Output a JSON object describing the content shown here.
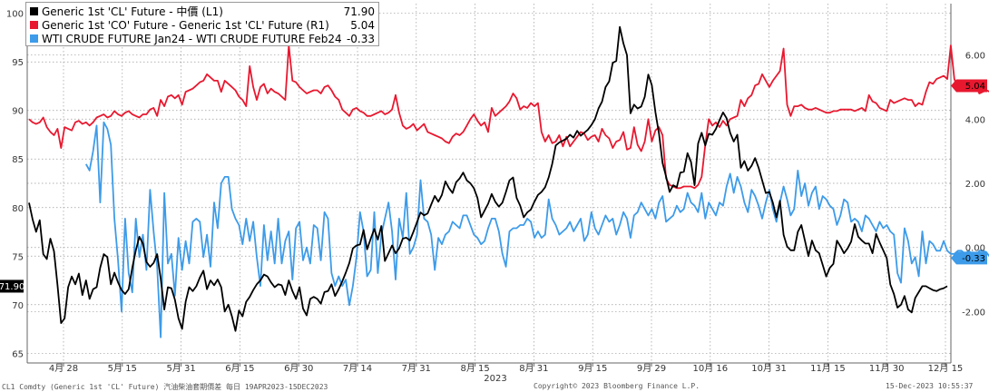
{
  "chart_data": {
    "type": "line",
    "xlabel": "2023",
    "x_ticks": [
      "4月 28",
      "5月 15",
      "5月 31",
      "6月 15",
      "6月 30",
      "7月 14",
      "7月 31",
      "8月 15",
      "8月 31",
      "9月 15",
      "9月 29",
      "10月 16",
      "10月 31",
      "11月 15",
      "11月 30",
      "12月 15"
    ],
    "left_axis": {
      "ylim": [
        64,
        101
      ],
      "ticks": [
        65,
        70,
        75,
        80,
        85,
        90,
        95,
        100
      ]
    },
    "right_axis": {
      "ylim": [
        -3.6,
        7.6
      ],
      "ticks": [
        "-2.00",
        "0.00",
        "2.00",
        "4.00",
        "6.00"
      ],
      "tick_values": [
        -2,
        0,
        2,
        4,
        6
      ]
    },
    "grid": true,
    "legend_position": "top-left",
    "series": [
      {
        "name": "Generic 1st 'CL' Future - 中價 (L1)",
        "last_label": "71.90",
        "axis": "left",
        "color": "#000000",
        "values": [
          80.5,
          78.8,
          77.5,
          78.7,
          75.2,
          74.7,
          76.8,
          75.5,
          72.0,
          68.1,
          68.6,
          71.8,
          72.9,
          72.1,
          73.2,
          71.0,
          72.5,
          70.6,
          71.6,
          71.8,
          73.8,
          75.2,
          74.9,
          72.1,
          73.3,
          72.3,
          71.5,
          71.1,
          71.6,
          73.8,
          75.6,
          77.0,
          76.3,
          74.4,
          73.9,
          74.3,
          75.2,
          72.7,
          69.5,
          71.8,
          71.7,
          70.5,
          68.6,
          67.5,
          70.3,
          71.8,
          71.4,
          71.9,
          72.8,
          73.5,
          71.6,
          72.5,
          72.0,
          72.6,
          71.8,
          69.3,
          70.0,
          68.8,
          67.3,
          69.4,
          68.8,
          70.3,
          70.8,
          71.5,
          72.1,
          72.5,
          73.1,
          72.9,
          72.3,
          71.8,
          72.1,
          72.0,
          71.0,
          72.5,
          71.4,
          70.6,
          71.8,
          69.6,
          68.9,
          70.6,
          70.8,
          70.6,
          70.1,
          71.3,
          71.4,
          72.1,
          70.9,
          71.6,
          72.4,
          73.3,
          74.3,
          75.8,
          76.1,
          76.2,
          77.7,
          75.7,
          76.8,
          77.8,
          76.7,
          78.1,
          74.5,
          75.3,
          76.1,
          75.3,
          75.8,
          76.8,
          76.9,
          76.6,
          77.5,
          78.5,
          79.5,
          79.2,
          79.4,
          80.3,
          81.2,
          80.6,
          81.3,
          82.7,
          82.0,
          81.5,
          82.6,
          83.0,
          83.6,
          82.8,
          82.5,
          82.0,
          81.0,
          79.0,
          79.7,
          80.4,
          81.4,
          80.6,
          80.1,
          80.5,
          81.6,
          82.8,
          83.1,
          81.0,
          80.2,
          79.0,
          79.5,
          79.8,
          80.6,
          81.3,
          81.6,
          82.1,
          83.1,
          84.5,
          86.4,
          86.7,
          86.9,
          87.1,
          87.5,
          87.2,
          87.9,
          87.4,
          87.7,
          88.0,
          88.5,
          89.1,
          90.2,
          90.9,
          92.4,
          93.0,
          94.9,
          95.1,
          98.6,
          96.9,
          95.7,
          89.7,
          90.6,
          90.2,
          90.4,
          91.4,
          93.7,
          92.6,
          89.8,
          87.6,
          84.6,
          83.2,
          81.6,
          82.3,
          82.1,
          83.6,
          83.7,
          85.6,
          84.7,
          82.3,
          86.6,
          87.7,
          86.4,
          87.6,
          87.5,
          88.1,
          89.0,
          89.8,
          89.2,
          87.7,
          86.8,
          87.5,
          84.1,
          84.8,
          83.8,
          84.3,
          85.1,
          84.1,
          82.8,
          81.5,
          81.6,
          80.5,
          79.0,
          80.7,
          77.2,
          76.0,
          75.6,
          75.6,
          77.5,
          78.2,
          76.6,
          75.0,
          76.6,
          75.6,
          75.3,
          74.1,
          72.9,
          73.8,
          74.2,
          76.6,
          76.0,
          75.3,
          75.8,
          76.5,
          78.3,
          77.0,
          76.6,
          76.3,
          76.3,
          75.3,
          77.3,
          76.4,
          75.6,
          74.8,
          72.1,
          71.1,
          69.7,
          70.0,
          70.9,
          69.5,
          69.2,
          70.7,
          71.3,
          71.9,
          71.9,
          71.7,
          71.5,
          71.4,
          71.6,
          71.7,
          71.9
        ]
      },
      {
        "name": "Generic 1st 'CO' Future - Generic 1st 'CL' Future (R1)",
        "last_label": "5.04",
        "axis": "right",
        "color": "#e8182f",
        "values": [
          4.0,
          3.9,
          3.85,
          3.9,
          4.05,
          3.75,
          3.6,
          3.5,
          3.7,
          3.1,
          3.75,
          3.7,
          3.65,
          3.9,
          3.95,
          3.85,
          3.9,
          3.8,
          3.9,
          4.05,
          4.1,
          4.15,
          4.05,
          4.1,
          4.25,
          4.15,
          4.1,
          4.2,
          4.25,
          4.15,
          4.1,
          4.05,
          4.15,
          4.15,
          4.3,
          4.35,
          4.1,
          4.6,
          4.4,
          4.7,
          4.75,
          4.65,
          4.75,
          4.45,
          4.85,
          4.9,
          4.95,
          5.05,
          5.15,
          5.2,
          5.4,
          5.3,
          5.2,
          5.2,
          4.85,
          5.2,
          5.1,
          5.0,
          4.9,
          4.7,
          4.6,
          4.4,
          5.65,
          5.0,
          4.6,
          5.0,
          5.1,
          4.8,
          4.95,
          4.85,
          4.8,
          4.7,
          4.6,
          6.3,
          5.2,
          5.15,
          5.0,
          4.9,
          4.8,
          4.85,
          4.9,
          4.9,
          4.8,
          5.0,
          5.05,
          4.9,
          4.7,
          4.6,
          4.3,
          4.2,
          4.1,
          4.3,
          4.35,
          4.25,
          4.2,
          4.1,
          4.1,
          4.15,
          4.2,
          4.25,
          4.15,
          4.2,
          4.3,
          4.75,
          4.2,
          3.8,
          3.7,
          3.75,
          3.85,
          3.65,
          3.75,
          3.85,
          3.6,
          3.55,
          3.5,
          3.45,
          3.4,
          3.3,
          3.25,
          3.45,
          3.55,
          3.5,
          3.6,
          3.8,
          4.0,
          4.15,
          3.95,
          3.8,
          3.9,
          3.6,
          4.35,
          4.1,
          4.2,
          4.3,
          4.4,
          4.55,
          4.8,
          4.65,
          4.3,
          4.4,
          4.35,
          4.5,
          4.4,
          4.5,
          3.6,
          3.3,
          3.5,
          3.25,
          3.3,
          3.5,
          3.15,
          3.45,
          3.15,
          3.3,
          3.45,
          3.6,
          3.55,
          3.35,
          3.45,
          3.5,
          3.3,
          3.7,
          3.5,
          3.4,
          3.1,
          3.3,
          3.35,
          3.6,
          3.05,
          3.1,
          3.75,
          3.2,
          3.0,
          3.3,
          4.0,
          3.3,
          3.65,
          3.75,
          3.5,
          2.15,
          1.95,
          1.9,
          1.85,
          1.85,
          1.9,
          1.9,
          1.9,
          1.85,
          1.95,
          2.2,
          3.2,
          4.0,
          3.8,
          3.9,
          3.75,
          3.95,
          3.8,
          4.0,
          4.05,
          4.1,
          4.6,
          4.4,
          4.65,
          4.75,
          5.05,
          5.1,
          5.4,
          5.2,
          5.0,
          5.2,
          5.35,
          5.5,
          6.2,
          4.45,
          4.1,
          4.4,
          4.4,
          4.45,
          4.35,
          4.3,
          4.3,
          4.35,
          4.3,
          4.25,
          4.2,
          4.2,
          4.25,
          4.25,
          4.3,
          4.3,
          4.3,
          4.3,
          4.25,
          4.3,
          4.35,
          4.25,
          4.75,
          4.55,
          4.5,
          4.35,
          4.3,
          4.25,
          4.6,
          4.5,
          4.55,
          4.6,
          4.65,
          4.6,
          4.6,
          4.4,
          4.5,
          4.45,
          4.85,
          5.15,
          5.1,
          5.25,
          5.3,
          5.35,
          5.25,
          6.3,
          5.25,
          4.95,
          5.1,
          5.0,
          5.05,
          5.0,
          5.05,
          4.8,
          4.85,
          4.9,
          4.85,
          5.0,
          4.95,
          5.04
        ]
      },
      {
        "name": "WTI CRUDE FUTURE Jan24 - WTI CRUDE FUTURE Feb24 (R1)",
        "last_label": "-0.33",
        "axis": "right",
        "color": "#3d9be9",
        "start_index": 16,
        "values": [
          2.6,
          2.4,
          3.0,
          3.8,
          1.4,
          3.9,
          3.7,
          3.2,
          0.9,
          -0.4,
          -2.0,
          0.9,
          -0.8,
          -1.4,
          0.9,
          -0.3,
          0.4,
          -0.7,
          1.8,
          0.5,
          -0.6,
          -2.8,
          1.7,
          -0.5,
          -0.2,
          -1.5,
          0.3,
          -0.7,
          0.2,
          -0.5,
          0.8,
          0.9,
          0.8,
          -0.3,
          0.4,
          -0.6,
          1.4,
          0.6,
          2.0,
          2.2,
          2.2,
          1.2,
          0.9,
          0.7,
          0.1,
          0.9,
          0.2,
          0.8,
          -0.3,
          -1.2,
          0.7,
          -0.4,
          0.5,
          -0.5,
          0.9,
          -0.5,
          0.2,
          0.5,
          -1.0,
          0.6,
          0.8,
          -0.4,
          0.0,
          -0.5,
          0.7,
          0.6,
          -0.4,
          1.1,
          0.9,
          -0.8,
          -1.2,
          -0.9,
          -1.2,
          -1.0,
          -1.8,
          -1.2,
          -0.3,
          1.1,
          0.5,
          -0.9,
          -0.7,
          1.1,
          -0.8,
          0.4,
          0.9,
          1.4,
          0.5,
          -1.0,
          0.9,
          0.3,
          1.7,
          -0.2,
          0.0,
          0.4,
          2.1,
          0.9,
          0.8,
          0.4,
          -0.7,
          0.3,
          0.1,
          0.4,
          0.5,
          0.8,
          0.7,
          0.6,
          1.0,
          1.0,
          0.7,
          0.4,
          0.3,
          0.1,
          0.2,
          0.6,
          0.9,
          0.9,
          0.5,
          -0.2,
          -0.6,
          0.5,
          0.6,
          0.6,
          0.7,
          0.7,
          0.9,
          0.8,
          0.3,
          0.5,
          0.3,
          0.4,
          1.5,
          0.9,
          0.7,
          0.4,
          0.5,
          0.6,
          0.8,
          0.5,
          0.7,
          0.9,
          0.2,
          0.4,
          1.1,
          0.6,
          0.4,
          0.7,
          1.0,
          0.8,
          0.9,
          0.4,
          0.7,
          1.1,
          0.9,
          0.3,
          1.0,
          1.1,
          1.4,
          1.2,
          1.0,
          1.2,
          0.9,
          1.4,
          1.6,
          0.8,
          0.9,
          1.0,
          1.3,
          1.1,
          1.2,
          1.7,
          1.4,
          1.3,
          1.1,
          1.7,
          0.9,
          1.4,
          1.2,
          1.0,
          1.4,
          1.3,
          1.9,
          2.3,
          1.7,
          2.2,
          1.9,
          1.4,
          1.1,
          1.8,
          1.6,
          1.3,
          0.9,
          1.4,
          1.8,
          1.2,
          0.8,
          1.4,
          1.9,
          1.5,
          1.0,
          1.2,
          2.4,
          1.6,
          2.0,
          1.3,
          1.7,
          1.9,
          1.2,
          1.6,
          1.5,
          1.3,
          1.2,
          0.7,
          1.0,
          1.5,
          1.4,
          0.8,
          0.9,
          0.8,
          0.5,
          1.0,
          0.9,
          0.7,
          0.5,
          0.8,
          0.6,
          0.7,
          0.5,
          0.4,
          -0.8,
          -1.1,
          0.6,
          0.2,
          -0.5,
          -0.3,
          -0.9,
          0.5,
          -0.5,
          0.2,
          0.1,
          -0.1,
          -0.1,
          0.2,
          -0.1,
          -0.2,
          -0.2,
          -0.1,
          -0.1,
          -0.2,
          -0.1,
          -0.2,
          -0.3,
          -0.1,
          -0.1,
          -0.15,
          -0.3,
          -0.25,
          -0.2,
          -0.2,
          -0.25,
          -0.2,
          -0.3,
          -0.25,
          -0.2,
          -0.25,
          -0.3,
          -0.3,
          -0.25,
          -0.3,
          -0.33
        ]
      }
    ]
  },
  "footer": {
    "left": "CL1 Comdty (Generic 1st 'CL' Future) 汽油柴油套期價差   每日 19APR2023-15DEC2023",
    "center": "Copyright© 2023 Bloomberg Finance L.P.",
    "right": "15-Dec-2023 10:55:37"
  }
}
